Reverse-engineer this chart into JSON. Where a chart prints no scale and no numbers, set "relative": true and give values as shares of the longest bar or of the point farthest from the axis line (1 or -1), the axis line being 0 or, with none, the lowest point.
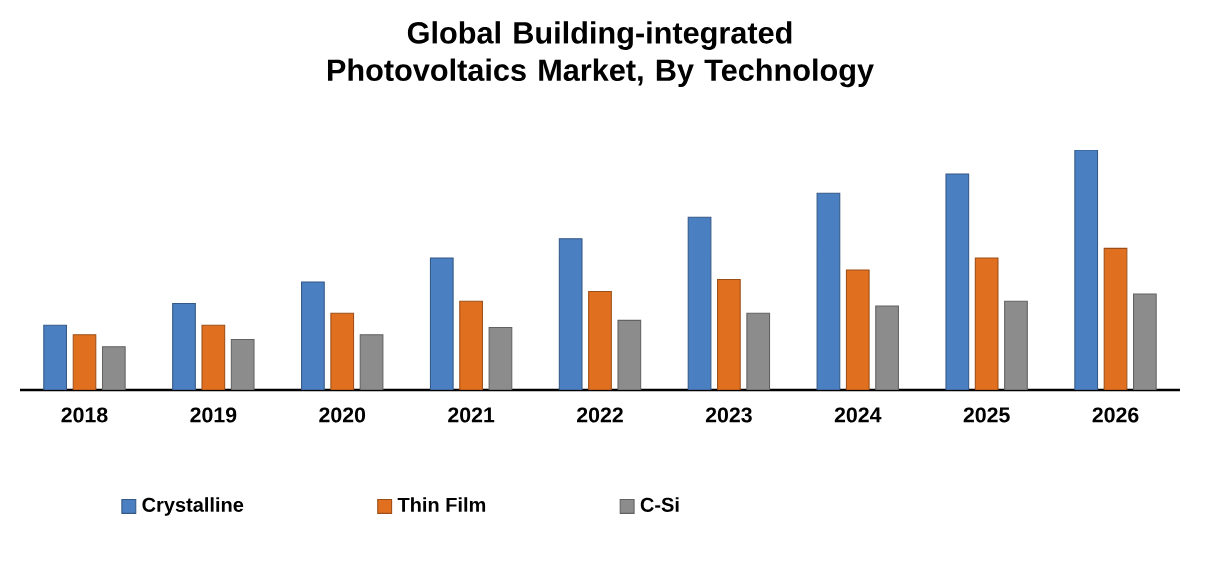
{
  "chart_data": {
    "type": "bar",
    "title": "Global Building-integrated Photovoltaics Market, By Technology",
    "categories": [
      "2018",
      "2019",
      "2020",
      "2021",
      "2022",
      "2023",
      "2024",
      "2025",
      "2026"
    ],
    "relative": true,
    "legend": "bottom left",
    "series": [
      {
        "name": "Crystalline",
        "color": "#4a7fc1",
        "values": [
          0.27,
          0.36,
          0.45,
          0.55,
          0.63,
          0.72,
          0.82,
          0.9,
          1
        ]
      },
      {
        "name": "Thin Film",
        "color": "#e07020",
        "values": [
          0.23,
          0.27,
          0.32,
          0.37,
          0.41,
          0.46,
          0.5,
          0.55,
          0.59
        ]
      },
      {
        "name": "C-Si",
        "color": "#8c8c8c",
        "values": [
          0.18,
          0.21,
          0.23,
          0.26,
          0.29,
          0.32,
          0.35,
          0.37,
          0.4
        ]
      }
    ]
  }
}
